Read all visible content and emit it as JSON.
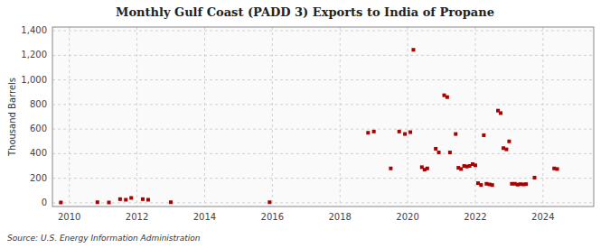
{
  "chart_data": {
    "type": "scatter",
    "title": "Monthly Gulf Coast (PADD 3) Exports to India of Propane",
    "ylabel": "Thousand Barrels",
    "annotations": [
      "Source: U.S. Energy Information Administration"
    ],
    "color": "#aa0000",
    "marker": "square",
    "grid": true,
    "xlim": [
      2009.5,
      2025.5
    ],
    "ylim": [
      -30,
      1430
    ],
    "xticks": [
      2010,
      2012,
      2014,
      2016,
      2018,
      2020,
      2022,
      2024
    ],
    "yticks": [
      0,
      200,
      400,
      600,
      800,
      {
        "value": 1000,
        "label": "1,000"
      },
      {
        "value": 1200,
        "label": "1,200"
      },
      {
        "value": 1400,
        "label": "1,400"
      }
    ],
    "x": [
      2009.75,
      2010.83,
      2011.17,
      2011.5,
      2011.67,
      2011.83,
      2012.17,
      2012.33,
      2013.0,
      2015.92,
      2018.83,
      2019.0,
      2019.5,
      2019.75,
      2019.92,
      2020.08,
      2020.17,
      2020.42,
      2020.5,
      2020.58,
      2020.83,
      2020.92,
      2021.08,
      2021.17,
      2021.25,
      2021.42,
      2021.5,
      2021.58,
      2021.67,
      2021.75,
      2021.83,
      2021.92,
      2022.0,
      2022.08,
      2022.17,
      2022.25,
      2022.33,
      2022.42,
      2022.5,
      2022.67,
      2022.75,
      2022.83,
      2022.92,
      2023.0,
      2023.08,
      2023.17,
      2023.25,
      2023.33,
      2023.42,
      2023.5,
      2023.75,
      2024.33,
      2024.42
    ],
    "values": [
      3,
      5,
      3,
      30,
      25,
      40,
      30,
      25,
      5,
      5,
      570,
      580,
      280,
      580,
      560,
      575,
      1245,
      290,
      270,
      280,
      440,
      410,
      875,
      860,
      410,
      560,
      285,
      275,
      300,
      295,
      300,
      315,
      305,
      160,
      145,
      550,
      155,
      150,
      145,
      750,
      730,
      445,
      435,
      500,
      155,
      155,
      148,
      152,
      150,
      152,
      205,
      280,
      275
    ]
  }
}
